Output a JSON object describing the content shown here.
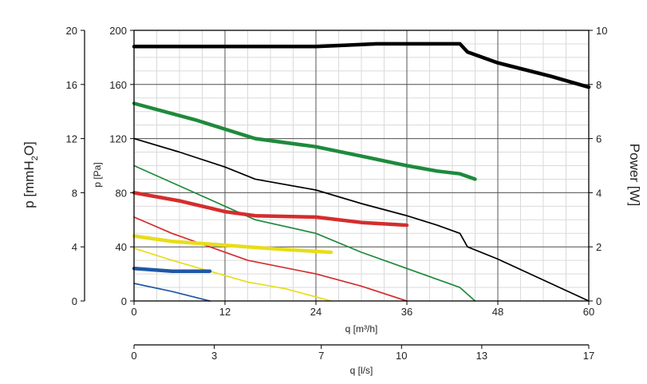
{
  "chart_data": {
    "type": "line",
    "title": "",
    "x_primary": {
      "label": "q [m³/h]",
      "range": [
        0,
        60
      ],
      "ticks": [
        "0",
        "12",
        "24",
        "36",
        "48",
        "60"
      ],
      "tick_values": [
        0,
        12,
        24,
        36,
        48,
        60
      ]
    },
    "x_secondary": {
      "label": "q [l/s]",
      "range": [
        0,
        17
      ],
      "ticks": [
        "0",
        "3",
        "7",
        "10",
        "13",
        "17"
      ],
      "tick_values": [
        0,
        3,
        7,
        10,
        13,
        17
      ]
    },
    "y_primary": {
      "label": "p [Pa]",
      "range": [
        0,
        200
      ],
      "ticks": [
        "0",
        "40",
        "80",
        "120",
        "160",
        "200"
      ],
      "tick_values": [
        0,
        40,
        80,
        120,
        160,
        200
      ]
    },
    "y_left_outer": {
      "label_base": "p [mmH",
      "label_sub": "2",
      "label_end": "O]",
      "range": [
        0,
        20
      ],
      "ticks": [
        "0",
        "4",
        "8",
        "12",
        "16",
        "20"
      ],
      "tick_values": [
        0,
        4,
        8,
        12,
        16,
        20
      ]
    },
    "y_right": {
      "label": "Power [W]",
      "range": [
        0,
        10
      ],
      "ticks": [
        "0",
        "2",
        "4",
        "6",
        "8",
        "10"
      ],
      "tick_values": [
        0,
        2,
        4,
        6,
        8,
        10
      ]
    },
    "grid": true,
    "series": [
      {
        "kind": "pressure",
        "color": "#000000",
        "thick": false,
        "x": [
          0,
          6,
          12,
          16,
          24,
          30,
          36,
          40,
          43,
          44,
          48,
          60
        ],
        "y": [
          120,
          110,
          99,
          90,
          82,
          72,
          63,
          56,
          50,
          40,
          31,
          0
        ]
      },
      {
        "kind": "pressure",
        "color": "#1e8a3c",
        "thick": false,
        "x": [
          0,
          8,
          16,
          24,
          30,
          36,
          43,
          45
        ],
        "y": [
          100,
          80,
          60,
          50,
          36,
          24,
          10,
          0
        ]
      },
      {
        "kind": "pressure",
        "color": "#d42d2d",
        "thick": false,
        "x": [
          0,
          5,
          10,
          15,
          24,
          30,
          36
        ],
        "y": [
          62,
          50,
          40,
          30,
          20,
          11,
          0
        ]
      },
      {
        "kind": "pressure",
        "color": "#e8dd1a",
        "thick": false,
        "x": [
          0,
          5,
          10,
          15,
          20,
          26
        ],
        "y": [
          39,
          30,
          22,
          14,
          9,
          0
        ]
      },
      {
        "kind": "pressure",
        "color": "#1f57a6",
        "thick": false,
        "x": [
          0,
          5,
          10
        ],
        "y": [
          13,
          7,
          0
        ]
      },
      {
        "kind": "power",
        "color": "#000000",
        "thick": true,
        "x": [
          0,
          12,
          18,
          24,
          28,
          32,
          40,
          43,
          44,
          48,
          55,
          60
        ],
        "y": [
          9.4,
          9.4,
          9.4,
          9.4,
          9.45,
          9.5,
          9.5,
          9.5,
          9.2,
          8.8,
          8.3,
          7.9
        ]
      },
      {
        "kind": "power",
        "color": "#1e8a3c",
        "thick": true,
        "x": [
          0,
          8,
          16,
          24,
          30,
          36,
          40,
          43,
          45
        ],
        "y": [
          7.3,
          6.7,
          6.0,
          5.7,
          5.35,
          5.0,
          4.8,
          4.7,
          4.5
        ]
      },
      {
        "kind": "power",
        "color": "#d42d2d",
        "thick": true,
        "x": [
          0,
          6,
          12,
          16,
          24,
          30,
          36
        ],
        "y": [
          4.0,
          3.7,
          3.3,
          3.15,
          3.1,
          2.9,
          2.8
        ]
      },
      {
        "kind": "power",
        "color": "#e8dd1a",
        "thick": true,
        "x": [
          0,
          5,
          10,
          15,
          20,
          26
        ],
        "y": [
          2.4,
          2.2,
          2.1,
          2.0,
          1.9,
          1.8
        ]
      },
      {
        "kind": "power",
        "color": "#1f57a6",
        "thick": true,
        "x": [
          0,
          5,
          10
        ],
        "y": [
          1.2,
          1.1,
          1.1
        ]
      }
    ]
  }
}
